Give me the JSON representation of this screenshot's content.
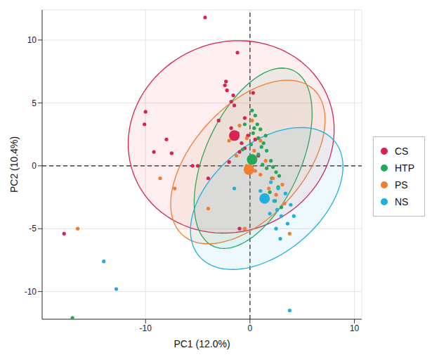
{
  "chart_data": {
    "type": "scatter",
    "x_label": "PC1 (12.0%)",
    "y_label": "PC2 (10.4%)",
    "xlim": [
      -19.9,
      10.7
    ],
    "ylim": [
      -12.2,
      12.4
    ],
    "xticks": [
      -10,
      0,
      10
    ],
    "yticks": [
      -10,
      -5,
      0,
      5,
      10
    ],
    "grid": true,
    "legend": "right",
    "hlines": [
      0
    ],
    "vlines": [
      0
    ],
    "series": [
      {
        "name": "CS",
        "color": "#d6244f",
        "x": [
          -4.3,
          -1.2,
          -2.3,
          -2.4,
          -2.2,
          -1.6,
          -1.8,
          -1.5,
          -10,
          -10.1,
          -8,
          -7.5,
          -9.2,
          -5.5,
          -5,
          -17.8,
          -1.8,
          -0.8,
          -1.0,
          0.3,
          -0.5,
          -1.2,
          -0.2,
          0.8,
          -1,
          -4,
          -2,
          -0.5,
          0.5,
          -3
        ],
        "y": [
          11.8,
          9.0,
          6.7,
          6.4,
          6.0,
          5.6,
          5.1,
          4.8,
          4.3,
          3.3,
          2.1,
          1.0,
          1.1,
          0,
          0,
          -5.4,
          3.0,
          1.8,
          1.1,
          5.8,
          3.8,
          2.6,
          2.4,
          0.8,
          -5.0,
          -1,
          0.3,
          1.4,
          2.1,
          3.6
        ],
        "centroid": [
          -1.5,
          2.4
        ],
        "ellipse": {
          "center": [
            -1.8,
            2.3
          ],
          "semi_axes": [
            9.9,
            7.6
          ],
          "angle": 8
        }
      },
      {
        "name": "HTP",
        "color": "#23a85a",
        "x": [
          -17,
          0.2,
          0.5,
          -0.5,
          0.7,
          1,
          0.3,
          0.8,
          1.3,
          0.1,
          1.6,
          1.1,
          0.8,
          2,
          1.6,
          2.5,
          2.1,
          2.7,
          1.9,
          2.4,
          3,
          2.2,
          -0.7,
          0,
          1.2,
          2.8,
          0.4,
          1.5
        ],
        "y": [
          -12.1,
          4.4,
          4,
          3.3,
          3.3,
          2.9,
          2.6,
          2.2,
          1.8,
          1.7,
          1.2,
          1.5,
          0.9,
          0.4,
          -0.2,
          -0.5,
          -1,
          -1.7,
          -2.1,
          -2.8,
          -3.3,
          -0.1,
          1.3,
          0.5,
          0.1,
          -0.8,
          3.0,
          2.4
        ],
        "centroid": [
          0.2,
          0.5
        ],
        "ellipse": {
          "center": [
            0.3,
            0.6
          ],
          "semi_axes": [
            8.0,
            4.4
          ],
          "angle": 58
        }
      },
      {
        "name": "PS",
        "color": "#f07d32",
        "x": [
          -16.5,
          -8.6,
          -7.2,
          -4,
          -2,
          -1.3,
          -0.3,
          0.5,
          1,
          1.8,
          2.5,
          3.8,
          -0.5,
          -0.3,
          0.2,
          1,
          1.5,
          3.1,
          3.3,
          2.2,
          0.4,
          -1
        ],
        "y": [
          -5,
          -1,
          -1.8,
          -3.4,
          2,
          0.8,
          0,
          -0.4,
          -0.7,
          -1.8,
          -2.3,
          -5.4,
          -5.0,
          2.2,
          3.6,
          2,
          0.4,
          -1.5,
          -3,
          -1,
          1.2,
          3.2
        ],
        "centroid": [
          -0.1,
          -0.3
        ],
        "ellipse": {
          "center": [
            -0.2,
            0.3
          ],
          "semi_axes": [
            8.6,
            4.8
          ],
          "angle": 38
        }
      },
      {
        "name": "NS",
        "color": "#1fb0e0",
        "x": [
          -14,
          -12.8,
          3.8,
          -1.5,
          2.3,
          2.6,
          3,
          2.9,
          3.6,
          4.2,
          2.5,
          1.9,
          1,
          3.4,
          2,
          1.2,
          2.7,
          3.9
        ],
        "y": [
          -7.6,
          -9.8,
          -11.5,
          -1.8,
          -2.8,
          -3.5,
          -4,
          -5.8,
          -4.6,
          -4,
          -5,
          -3.8,
          -2,
          -2.2,
          -1.3,
          -2.5,
          -1.8,
          -3.1
        ],
        "centroid": [
          1.4,
          -2.6
        ],
        "ellipse": {
          "center": [
            1.6,
            -2.6
          ],
          "semi_axes": [
            8.0,
            4.6
          ],
          "angle": 30
        }
      }
    ]
  }
}
